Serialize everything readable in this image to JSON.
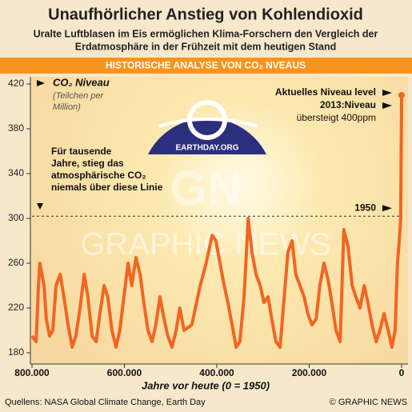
{
  "chart_data": {
    "type": "line",
    "title": "Unaufhörlicher Anstieg von Kohlendioxid",
    "subtitle": [
      "Uralte Luftblasen im Eis ermöglichen Klima-Forschern  den Vergleich der",
      "Erdatmosphäre in der Frühzeit mit dem heutigen Stand"
    ],
    "banner": "HISTORISCHE ANALYSE VON CO₂ NVEAUS",
    "y_label": "CO₂ Niveau",
    "y_unit": [
      "(Teilchen per",
      "Million)"
    ],
    "x_label": "Jahre vor heute (0 = 1950)",
    "annotation_line": [
      "Für tausende",
      "Jahre, stieg das",
      "atmosphärische CO₂",
      "niemals über diese Linie"
    ],
    "reference_label": "1950",
    "reference_value": 302,
    "current_note": [
      "Aktuelles Niveau level",
      "2013:Niveau",
      "übersteigt 400ppm"
    ],
    "logo": "EARTHDAY.ORG",
    "watermark": "GRAPHIC NEWS",
    "watermark_mark": "GN",
    "source": "Quellens: NASA Global Climate Change, Earth Day",
    "credit": "© GRAPHIC NEWS",
    "x": [
      800000,
      791000,
      786000,
      783000,
      774000,
      769000,
      762000,
      755000,
      748000,
      739000,
      731000,
      722000,
      713000,
      705000,
      696000,
      687000,
      679000,
      670000,
      661000,
      653000,
      644000,
      636000,
      627000,
      618000,
      610000,
      592000,
      584000,
      575000,
      566000,
      558000,
      549000,
      540000,
      532000,
      523000,
      514000,
      506000,
      497000,
      488000,
      480000,
      471000,
      454000,
      436000,
      423000,
      410000,
      402000,
      393000,
      384000,
      376000,
      367000,
      358000,
      350000,
      341000,
      332000,
      324000,
      315000,
      306000,
      298000,
      289000,
      281000,
      272000,
      263000,
      255000,
      246000,
      237000,
      229000,
      220000,
      211000,
      203000,
      194000,
      185000,
      177000,
      168000,
      159000,
      151000,
      142000,
      133000,
      125000,
      116000,
      107000,
      99000,
      90000,
      81000,
      73000,
      64000,
      55000,
      47000,
      38000,
      29000,
      21000,
      14000,
      9000,
      5000,
      2000,
      0
    ],
    "series": [
      {
        "name": "CO₂ Niveau",
        "color": "#f26522",
        "values": [
          195,
          190,
          240,
          260,
          240,
          210,
          195,
          200,
          240,
          250,
          230,
          205,
          185,
          195,
          220,
          250,
          230,
          195,
          190,
          215,
          240,
          230,
          200,
          185,
          200,
          260,
          240,
          265,
          250,
          225,
          200,
          190,
          205,
          230,
          210,
          195,
          185,
          200,
          220,
          200,
          205,
          240,
          260,
          285,
          280,
          260,
          240,
          225,
          205,
          185,
          190,
          230,
          300,
          270,
          250,
          240,
          225,
          230,
          210,
          190,
          185,
          225,
          270,
          280,
          250,
          240,
          230,
          215,
          205,
          210,
          240,
          260,
          245,
          225,
          200,
          190,
          290,
          275,
          240,
          230,
          220,
          240,
          225,
          205,
          190,
          200,
          215,
          200,
          185,
          200,
          260,
          280,
          300,
          410
        ]
      }
    ],
    "xlim": [
      800000,
      0
    ],
    "ylim": [
      180,
      420
    ],
    "xticks": [
      {
        "value": 800000,
        "label": "800.000"
      },
      {
        "value": 600000,
        "label": "600.000"
      },
      {
        "value": 400000,
        "label": "400.000"
      },
      {
        "value": 200000,
        "label": "200.000"
      },
      0
    ],
    "yticks": [
      180,
      220,
      260,
      300,
      340,
      380,
      420
    ]
  }
}
